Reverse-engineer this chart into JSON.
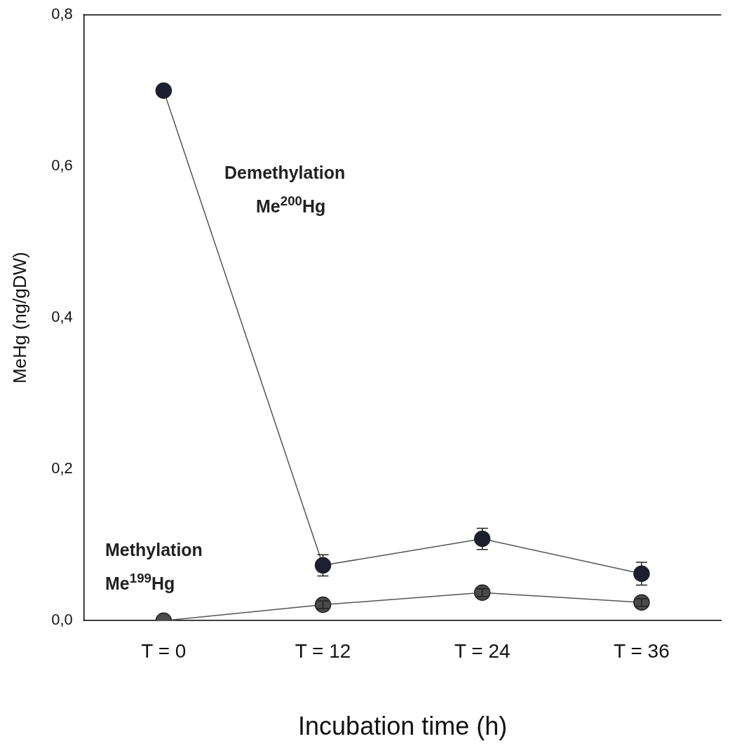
{
  "chart_data": {
    "type": "line",
    "xlabel": "Incubation time (h)",
    "ylabel": "MeHg (ng/gDW)",
    "categories": [
      "T = 0",
      "T = 12",
      "T = 24",
      "T = 36"
    ],
    "series": [
      {
        "name": "Demethylation Me$^{200}$Hg",
        "color": "#1c1f33",
        "values": [
          0.7,
          0.073,
          0.108,
          0.062
        ],
        "errors": [
          null,
          0.014,
          0.014,
          0.015
        ]
      },
      {
        "name": "Methylation Me$^{199}$Hg",
        "color": "#4a4a4a",
        "values": [
          0,
          0.021,
          0.037,
          0.024
        ],
        "errors": [
          null,
          0.005,
          0.005,
          0.005
        ]
      }
    ],
    "ylim": [
      0,
      0.8
    ],
    "yticks": [
      {
        "value": 0,
        "label": "0,0"
      },
      {
        "value": 0.2,
        "label": "0,2"
      },
      {
        "value": 0.4,
        "label": "0,4"
      },
      {
        "value": 0.6,
        "label": "0,6"
      },
      {
        "value": 0.8,
        "label": "0,8"
      }
    ],
    "grid": false,
    "legend": false,
    "marker": "circle",
    "line_style": "solid"
  }
}
